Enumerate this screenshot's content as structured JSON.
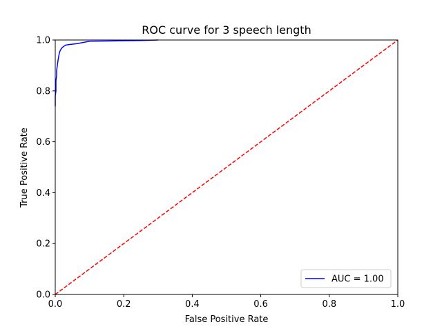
{
  "chart_data": {
    "type": "line",
    "title": "ROC curve for 3 speech length",
    "xlabel": "False Positive Rate",
    "ylabel": "True Positive Rate",
    "xlim": [
      0.0,
      1.0
    ],
    "ylim": [
      0.0,
      1.0
    ],
    "xticks": [
      "0.0",
      "0.2",
      "0.4",
      "0.6",
      "0.8",
      "1.0"
    ],
    "yticks": [
      "0.0",
      "0.2",
      "0.4",
      "0.6",
      "0.8",
      "1.0"
    ],
    "grid": false,
    "legend_position": "lower-right",
    "series": [
      {
        "name": "AUC = 1.00",
        "color": "#0000ff",
        "style": "solid",
        "x": [
          0.0,
          0.0,
          0.002,
          0.002,
          0.004,
          0.004,
          0.006,
          0.008,
          0.01,
          0.012,
          0.015,
          0.02,
          0.025,
          0.03,
          0.04,
          0.06,
          0.08,
          0.1,
          0.15,
          0.2,
          0.25,
          0.3
        ],
        "y": [
          0.74,
          0.78,
          0.8,
          0.84,
          0.86,
          0.88,
          0.9,
          0.92,
          0.935,
          0.95,
          0.96,
          0.97,
          0.975,
          0.98,
          0.982,
          0.985,
          0.99,
          0.995,
          0.996,
          0.997,
          0.998,
          1.0
        ]
      },
      {
        "name": "",
        "color": "#ff0000",
        "style": "dashed",
        "x": [
          0.0,
          1.0
        ],
        "y": [
          0.0,
          1.0
        ]
      }
    ]
  }
}
